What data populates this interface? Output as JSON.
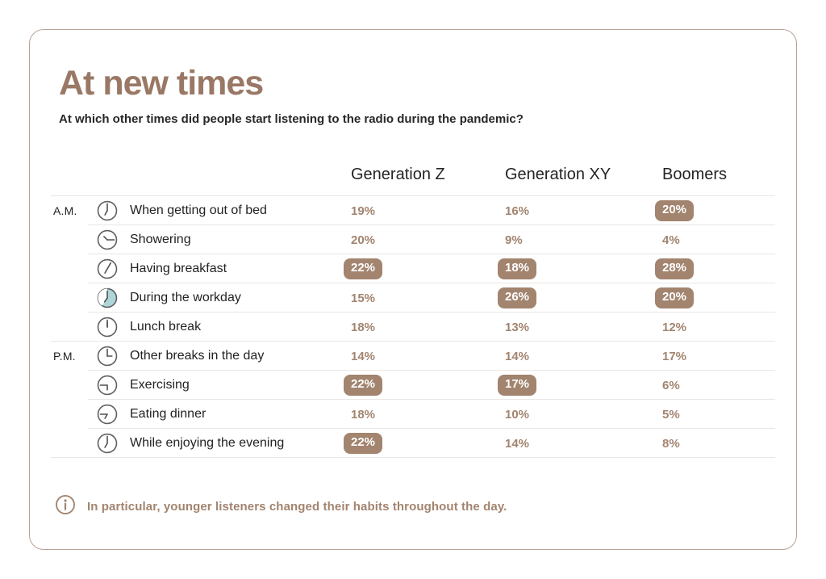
{
  "title": "At new times",
  "subtitle": "At which other times did people start listening to the radio during the pandemic?",
  "table": {
    "columns": [
      "Generation Z",
      "Generation XY",
      "Boomers"
    ],
    "rows": [
      {
        "period": "A.M.",
        "icon": {
          "name": "clock-seven-am-icon",
          "hands": [
            0,
            210
          ]
        },
        "label": "When getting out of bed",
        "values": [
          {
            "text": "19%",
            "highlighted": false
          },
          {
            "text": "16%",
            "highlighted": false
          },
          {
            "text": "20%",
            "highlighted": true
          }
        ]
      },
      {
        "period": "",
        "icon": {
          "name": "clock-showering-icon",
          "hands": [
            90,
            315
          ]
        },
        "label": "Showering",
        "values": [
          {
            "text": "20%",
            "highlighted": false
          },
          {
            "text": "9%",
            "highlighted": false
          },
          {
            "text": "4%",
            "highlighted": false
          }
        ]
      },
      {
        "period": "",
        "icon": {
          "name": "clock-breakfast-icon",
          "hands": [
            30,
            210
          ]
        },
        "label": "Having breakfast",
        "values": [
          {
            "text": "22%",
            "highlighted": true
          },
          {
            "text": "18%",
            "highlighted": true
          },
          {
            "text": "28%",
            "highlighted": true
          }
        ]
      },
      {
        "period": "",
        "icon": {
          "name": "clock-workday-filled-icon",
          "hands": [
            0,
            215
          ],
          "fill": "#aed6d6",
          "wedge": true
        },
        "label": "During the workday",
        "values": [
          {
            "text": "15%",
            "highlighted": false
          },
          {
            "text": "26%",
            "highlighted": true
          },
          {
            "text": "20%",
            "highlighted": true
          }
        ]
      },
      {
        "period": "",
        "icon": {
          "name": "clock-noon-icon",
          "hands": [
            0,
            0
          ]
        },
        "label": "Lunch break",
        "values": [
          {
            "text": "18%",
            "highlighted": false
          },
          {
            "text": "13%",
            "highlighted": false
          },
          {
            "text": "12%",
            "highlighted": false
          }
        ]
      },
      {
        "period": "P.M.",
        "icon": {
          "name": "clock-three-pm-icon",
          "hands": [
            0,
            90
          ]
        },
        "label": "Other breaks in the day",
        "values": [
          {
            "text": "14%",
            "highlighted": false
          },
          {
            "text": "14%",
            "highlighted": false
          },
          {
            "text": "17%",
            "highlighted": false
          }
        ]
      },
      {
        "period": "",
        "icon": {
          "name": "clock-exercising-icon",
          "hands": [
            270,
            180
          ]
        },
        "label": "Exercising",
        "values": [
          {
            "text": "22%",
            "highlighted": true
          },
          {
            "text": "17%",
            "highlighted": true
          },
          {
            "text": "6%",
            "highlighted": false
          }
        ]
      },
      {
        "period": "",
        "icon": {
          "name": "clock-dinner-icon",
          "hands": [
            270,
            210
          ]
        },
        "label": "Eating dinner",
        "values": [
          {
            "text": "18%",
            "highlighted": false
          },
          {
            "text": "10%",
            "highlighted": false
          },
          {
            "text": "5%",
            "highlighted": false
          }
        ]
      },
      {
        "period": "",
        "icon": {
          "name": "clock-evening-icon",
          "hands": [
            0,
            210
          ]
        },
        "label": "While enjoying the evening",
        "values": [
          {
            "text": "22%",
            "highlighted": true
          },
          {
            "text": "14%",
            "highlighted": false
          },
          {
            "text": "8%",
            "highlighted": false
          }
        ]
      }
    ]
  },
  "footer": {
    "note": "In particular, younger listeners changed their habits throughout the day."
  },
  "colors": {
    "accent": "#a2846f",
    "title": "#9a7866",
    "badge_text": "#ffffff",
    "teal_clock_fill": "#aed6d6",
    "divider": "#e9e7e5",
    "dark_text": "#282828",
    "card_border": "#b9a396"
  },
  "chart_data": {
    "type": "table",
    "title": "At new times",
    "subtitle": "At which other times did people start listening to the radio during the pandemic?",
    "unit": "%",
    "categories": [
      "When getting out of bed",
      "Showering",
      "Having breakfast",
      "During the workday",
      "Lunch break",
      "Other breaks in the day",
      "Exercising",
      "Eating dinner",
      "While enjoying the evening"
    ],
    "period_markers": {
      "When getting out of bed": "A.M.",
      "Other breaks in the day": "P.M."
    },
    "series": [
      {
        "name": "Generation Z",
        "values": [
          19,
          20,
          22,
          15,
          18,
          14,
          22,
          18,
          22
        ],
        "highlighted": [
          false,
          false,
          true,
          false,
          false,
          false,
          true,
          false,
          true
        ]
      },
      {
        "name": "Generation XY",
        "values": [
          16,
          9,
          18,
          26,
          13,
          14,
          17,
          10,
          14
        ],
        "highlighted": [
          false,
          false,
          true,
          true,
          false,
          false,
          true,
          false,
          false
        ]
      },
      {
        "name": "Boomers",
        "values": [
          20,
          4,
          28,
          20,
          12,
          17,
          6,
          5,
          8
        ],
        "highlighted": [
          true,
          false,
          true,
          true,
          false,
          false,
          false,
          false,
          false
        ]
      }
    ],
    "annotation": "In particular, younger listeners changed their habits throughout the day."
  }
}
